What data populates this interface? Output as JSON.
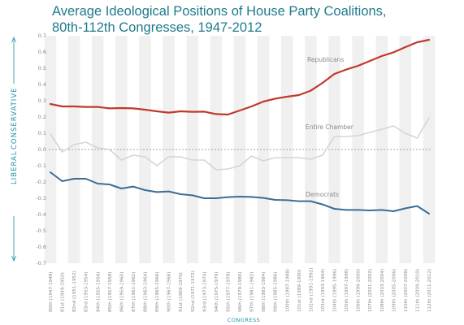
{
  "title_line1": "Average Ideological Positions of House Party Coalitions,",
  "title_line2": "80th-112th Congresses, 1947-2012",
  "colors": {
    "republicans": "#c0392b",
    "democrats": "#3a6d96",
    "chamber": "#d5d5d5",
    "accent": "#1f8fa6"
  },
  "chart_data": {
    "type": "line",
    "title": "Average Ideological Positions of House Party Coalitions, 80th-112th Congresses, 1947-2012",
    "xlabel": "CONGRESS",
    "ylabel_left": "LIBERAL",
    "ylabel_right": "CONSERVATIVE",
    "ylim": [
      -0.7,
      0.7
    ],
    "yticks": [
      0.7,
      0.6,
      0.5,
      0.4,
      0.3,
      0.2,
      0.1,
      0.0,
      -0.1,
      -0.2,
      -0.3,
      -0.4,
      -0.5,
      -0.6,
      -0.7
    ],
    "ytick_labels": [
      "0.7",
      "0.6",
      "0.5",
      "0.4",
      "0.3",
      "0.2",
      "0.1",
      "0.0",
      "-0.1",
      "-0.2",
      "-0.3",
      "-0.4",
      "-0.5",
      "-0.6",
      "-0.7"
    ],
    "zero_line": "dashed",
    "grid": "alternating vertical bands",
    "categories": [
      "80th (1947-1948)",
      "81st (1949-1950)",
      "82nd (1951-1952)",
      "83rd (1953-1954)",
      "84th (1955-1956)",
      "85th (1957-1958)",
      "86th (1959-1960)",
      "87th (1961-1962)",
      "88th (1963-1964)",
      "89th (1965-1966)",
      "90th (1967-1968)",
      "91st (1969-1970)",
      "92nd (1971-1972)",
      "93rd (1973-1974)",
      "94th (1975-1976)",
      "95th (1977-1978)",
      "96th (1979-1980)",
      "97th (1981-1982)",
      "98th (1983-1984)",
      "99th (1985-1986)",
      "100th (1987-1988)",
      "101st (1989-1990)",
      "102nd (1991-1992)",
      "103rd (1993-1994)",
      "104th (1995-1996)",
      "105th (1997-1998)",
      "106th (1999-2000)",
      "107th (2001-2002)",
      "108th (2003-2004)",
      "109th (2005-2006)",
      "110th (2007-2008)",
      "111th (2009-2010)",
      "112th (2011-2012)"
    ],
    "series": [
      {
        "name": "Republicans",
        "key": "republicans",
        "values": [
          0.28,
          0.265,
          0.265,
          0.262,
          0.262,
          0.253,
          0.255,
          0.253,
          0.245,
          0.235,
          0.227,
          0.235,
          0.232,
          0.233,
          0.218,
          0.215,
          0.24,
          0.265,
          0.295,
          0.313,
          0.325,
          0.335,
          0.362,
          0.41,
          0.465,
          0.492,
          0.515,
          0.545,
          0.575,
          0.598,
          0.63,
          0.66,
          0.675
        ]
      },
      {
        "name": "Entire Chamber",
        "key": "chamber",
        "values": [
          0.095,
          -0.015,
          0.03,
          0.045,
          0.01,
          0.0,
          -0.065,
          -0.035,
          -0.045,
          -0.1,
          -0.045,
          -0.045,
          -0.065,
          -0.065,
          -0.125,
          -0.12,
          -0.1,
          -0.04,
          -0.07,
          -0.05,
          -0.05,
          -0.05,
          -0.06,
          -0.035,
          0.08,
          0.08,
          0.085,
          0.105,
          0.125,
          0.145,
          0.1,
          0.07,
          0.195
        ]
      },
      {
        "name": "Democrats",
        "key": "democrats",
        "values": [
          -0.14,
          -0.195,
          -0.18,
          -0.18,
          -0.21,
          -0.215,
          -0.24,
          -0.228,
          -0.25,
          -0.262,
          -0.258,
          -0.275,
          -0.282,
          -0.3,
          -0.3,
          -0.293,
          -0.29,
          -0.292,
          -0.298,
          -0.31,
          -0.312,
          -0.318,
          -0.318,
          -0.338,
          -0.365,
          -0.372,
          -0.372,
          -0.375,
          -0.372,
          -0.38,
          -0.362,
          -0.348,
          -0.395
        ]
      }
    ]
  }
}
